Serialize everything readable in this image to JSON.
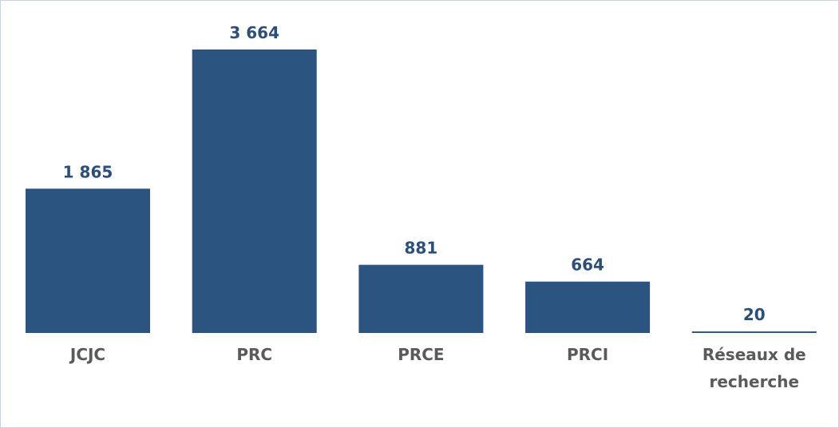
{
  "chart_data": {
    "type": "bar",
    "categories": [
      "JCJC",
      "PRC",
      "PRCE",
      "PRCI",
      "Réseaux de recherche"
    ],
    "values": [
      1865,
      3664,
      881,
      664,
      20
    ],
    "value_labels": [
      "1 865",
      "3 664",
      "881",
      "664",
      "20"
    ],
    "color": "#2b5480"
  }
}
